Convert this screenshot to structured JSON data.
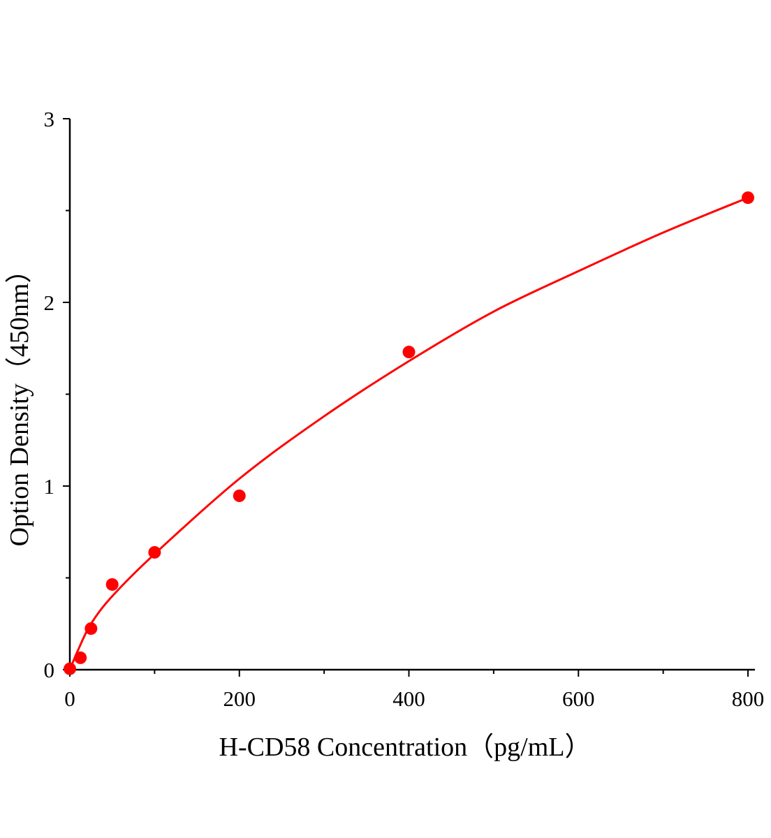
{
  "chart_data": {
    "type": "scatter",
    "xlabel": "H-CD58 Concentration（pg/mL）",
    "ylabel": "Option Density（450nm）",
    "xlim": [
      0,
      800
    ],
    "ylim": [
      0,
      3
    ],
    "x_ticks": [
      0,
      200,
      400,
      600,
      800
    ],
    "x_minor_ticks": [
      100,
      300,
      500,
      700
    ],
    "y_ticks": [
      0,
      1,
      2,
      3
    ],
    "y_minor_ticks": [
      0.5,
      1.5,
      2.5
    ],
    "grid": false,
    "color": "#ff0000",
    "points": {
      "x": [
        0,
        12.5,
        25,
        50,
        100,
        200,
        400,
        800
      ],
      "y": [
        0.005,
        0.065,
        0.224,
        0.464,
        0.639,
        0.947,
        1.73,
        2.57
      ]
    },
    "fit_curve": {
      "x": [
        0,
        10,
        25,
        50,
        100,
        200,
        300,
        400,
        500,
        600,
        700,
        800
      ],
      "y": [
        0,
        0.11,
        0.25,
        0.4,
        0.63,
        1.04,
        1.38,
        1.68,
        1.95,
        2.17,
        2.38,
        2.57
      ]
    }
  }
}
